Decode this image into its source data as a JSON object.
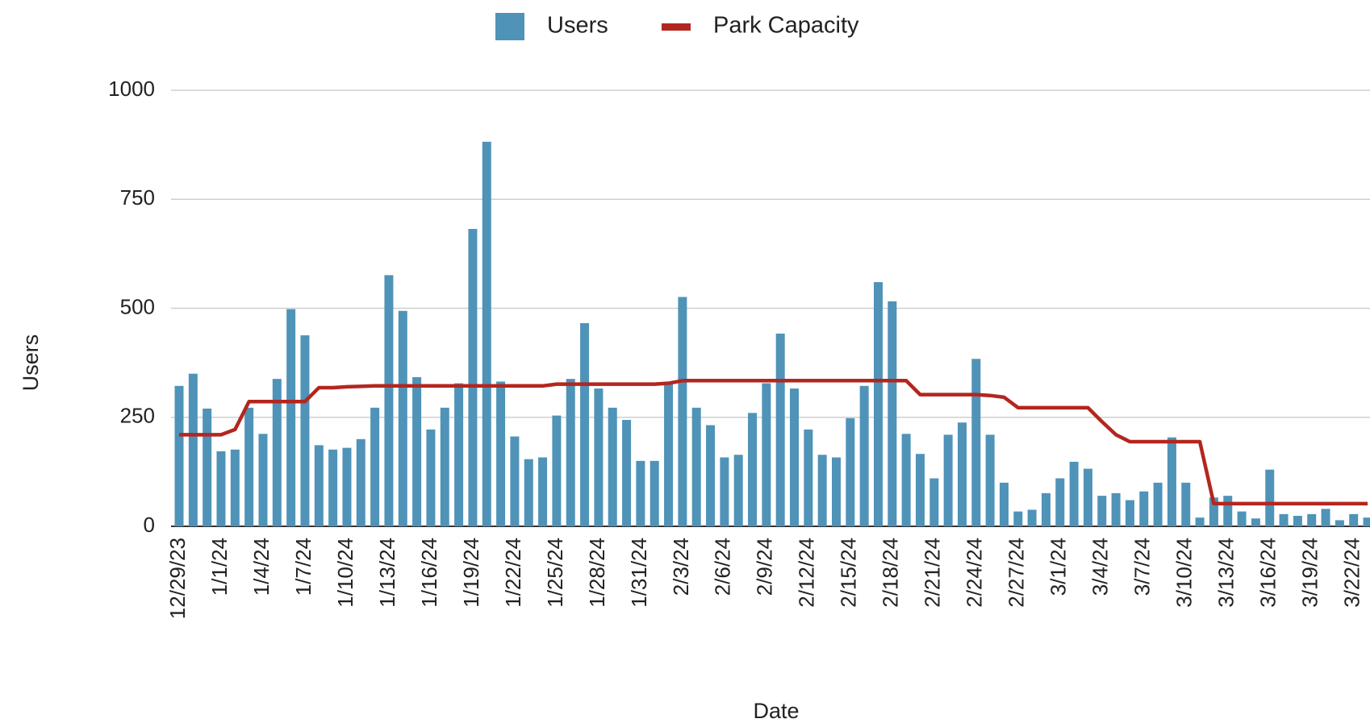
{
  "chart_data": {
    "type": "bar",
    "x_label": "Date",
    "y_label": "Users",
    "categories": [
      "12/29/23",
      null,
      null,
      "1/1/24",
      null,
      null,
      "1/4/24",
      null,
      null,
      "1/7/24",
      null,
      null,
      "1/10/24",
      null,
      null,
      "1/13/24",
      null,
      null,
      "1/16/24",
      null,
      null,
      "1/19/24",
      null,
      null,
      "1/22/24",
      null,
      null,
      "1/25/24",
      null,
      null,
      "1/28/24",
      null,
      null,
      "1/31/24",
      null,
      null,
      "2/3/24",
      null,
      null,
      "2/6/24",
      null,
      null,
      "2/9/24",
      null,
      null,
      "2/12/24",
      null,
      null,
      "2/15/24",
      null,
      null,
      "2/18/24",
      null,
      null,
      "2/21/24",
      null,
      null,
      "2/24/24",
      null,
      null,
      "2/27/24",
      null,
      null,
      "3/1/24",
      null,
      null,
      "3/4/24",
      null,
      null,
      "3/7/24",
      null,
      null,
      "3/10/24",
      null,
      null,
      "3/13/24",
      null,
      null,
      "3/16/24",
      null,
      null,
      "3/19/24",
      null,
      null,
      "3/22/24",
      null
    ],
    "series": [
      {
        "name": "Users",
        "type": "bar",
        "color": "#4f93b8",
        "values": [
          322,
          350,
          270,
          172,
          176,
          272,
          212,
          338,
          498,
          438,
          186,
          176,
          180,
          200,
          272,
          576,
          494,
          342,
          222,
          272,
          328,
          682,
          882,
          332,
          206,
          154,
          158,
          254,
          338,
          466,
          316,
          272,
          244,
          150,
          150,
          328,
          526,
          272,
          232,
          158,
          164,
          260,
          328,
          442,
          316,
          222,
          164,
          158,
          248,
          322,
          560,
          516,
          212,
          166,
          110,
          210,
          238,
          384,
          210,
          100,
          34,
          38,
          76,
          110,
          148,
          132,
          70,
          76,
          60,
          80,
          100,
          204,
          100,
          20,
          66,
          70,
          34,
          18,
          130,
          28,
          24,
          28,
          40,
          14,
          28,
          20
        ]
      },
      {
        "name": "Park Capacity",
        "type": "line",
        "color": "#b3261e",
        "values": [
          210,
          210,
          210,
          210,
          222,
          286,
          286,
          286,
          286,
          286,
          318,
          318,
          320,
          321,
          322,
          322,
          322,
          322,
          322,
          322,
          322,
          322,
          322,
          322,
          322,
          322,
          322,
          326,
          326,
          326,
          326,
          326,
          326,
          326,
          326,
          328,
          334,
          334,
          334,
          334,
          334,
          334,
          334,
          334,
          334,
          334,
          334,
          334,
          334,
          334,
          334,
          334,
          334,
          302,
          302,
          302,
          302,
          302,
          300,
          296,
          272,
          272,
          272,
          272,
          272,
          272,
          240,
          210,
          194,
          194,
          194,
          194,
          194,
          194,
          52,
          52,
          52,
          52,
          52,
          52,
          52,
          52,
          52,
          52,
          52,
          52
        ]
      }
    ],
    "ylim": [
      0,
      1000
    ],
    "yticks": [
      0,
      250,
      500,
      750,
      1000
    ],
    "grid": true,
    "legend": "top"
  }
}
